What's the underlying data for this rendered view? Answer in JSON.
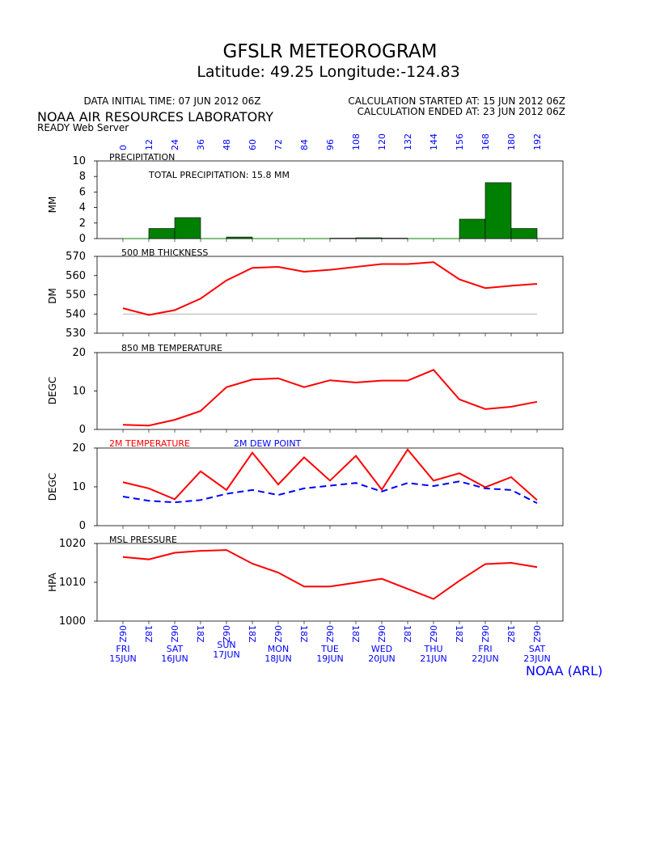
{
  "header": {
    "title": "GFSLR METEOROGRAM",
    "location": "Latitude: 49.25 Longitude:-124.83",
    "data_initial_time": "DATA INITIAL TIME: 07 JUN 2012 06Z",
    "calc_started": "CALCULATION STARTED AT: 15 JUN 2012 06Z",
    "calc_ended": "CALCULATION ENDED AT: 23 JUN 2012 06Z",
    "org": "NOAA AIR RESOURCES LABORATORY",
    "server": "READY Web Server",
    "credit": "NOAA (ARL)"
  },
  "colors": {
    "bar": "#008000",
    "line": "#ff0000",
    "dewpoint": "#0000ff",
    "axis_text": "#0000ff"
  },
  "forecast_hours": [
    "0",
    "12",
    "24",
    "36",
    "48",
    "60",
    "72",
    "84",
    "96",
    "108",
    "120",
    "132",
    "144",
    "156",
    "168",
    "180",
    "192"
  ],
  "time_labels": [
    "06Z",
    "18Z",
    "06Z",
    "18Z",
    "06Z",
    "18Z",
    "06Z",
    "18Z",
    "06Z",
    "18Z",
    "06Z",
    "18Z",
    "06Z",
    "18Z",
    "06Z",
    "18Z",
    "06Z"
  ],
  "days": [
    {
      "day": "FRI",
      "date": "15JUN"
    },
    {
      "day": "SAT",
      "date": "16JUN"
    },
    {
      "day": "SUN",
      "date": "17JUN"
    },
    {
      "day": "MON",
      "date": "18JUN"
    },
    {
      "day": "TUE",
      "date": "19JUN"
    },
    {
      "day": "WED",
      "date": "20JUN"
    },
    {
      "day": "THU",
      "date": "21JUN"
    },
    {
      "day": "FRI",
      "date": "22JUN"
    },
    {
      "day": "SAT",
      "date": "23JUN"
    }
  ],
  "chart_data": [
    {
      "type": "bar",
      "title": "PRECIPITATION",
      "annotation": "TOTAL PRECIPITATION:  15.8 MM",
      "ylabel": "MM",
      "ylim": [
        0,
        10
      ],
      "yticks": [
        0,
        2,
        4,
        6,
        8,
        10
      ],
      "x": [
        0,
        12,
        24,
        36,
        48,
        60,
        72,
        84,
        96,
        108,
        120,
        132,
        144,
        156,
        168,
        180
      ],
      "values": [
        0,
        1.3,
        2.7,
        0,
        0.2,
        0,
        0,
        0,
        0.05,
        0.1,
        0.05,
        0,
        0,
        2.5,
        7.2,
        1.3
      ]
    },
    {
      "type": "line",
      "title": "500 MB  THICKNESS",
      "ylabel": "DM",
      "ylim": [
        530,
        570
      ],
      "yticks": [
        530,
        540,
        550,
        560,
        570
      ],
      "x": [
        0,
        12,
        24,
        36,
        48,
        60,
        72,
        84,
        96,
        108,
        120,
        132,
        144,
        156,
        168,
        180,
        192
      ],
      "series": [
        {
          "values": [
            543,
            539.5,
            542,
            548,
            557.5,
            564,
            564.5,
            562,
            563,
            564.5,
            566,
            566,
            567,
            558,
            553.5,
            554.7,
            555.7
          ]
        }
      ]
    },
    {
      "type": "line",
      "title": "850 MB  TEMPERATURE",
      "ylabel": "DEGC",
      "ylim": [
        0,
        20
      ],
      "yticks": [
        0,
        10,
        20
      ],
      "x": [
        0,
        12,
        24,
        36,
        48,
        60,
        72,
        84,
        96,
        108,
        120,
        132,
        144,
        156,
        168,
        180,
        192
      ],
      "series": [
        {
          "values": [
            1.2,
            1.0,
            2.5,
            4.8,
            11,
            13,
            13.3,
            11,
            12.8,
            12.2,
            12.7,
            12.7,
            15.5,
            7.8,
            5.3,
            5.9,
            7.2
          ]
        }
      ]
    },
    {
      "type": "line",
      "title": "",
      "ylabel": "DEGC",
      "ylim": [
        0,
        20
      ],
      "yticks": [
        0,
        10,
        20
      ],
      "x": [
        0,
        12,
        24,
        36,
        48,
        60,
        72,
        84,
        96,
        108,
        120,
        132,
        144,
        156,
        168,
        180,
        192
      ],
      "series": [
        {
          "name": "2M TEMPERATURE",
          "values": [
            11.2,
            9.6,
            6.8,
            14,
            9.2,
            18.8,
            10.6,
            17.6,
            11.6,
            18,
            9.3,
            19.6,
            11.6,
            13.5,
            9.9,
            12.5,
            6.6
          ]
        },
        {
          "name": "2M   DEW POINT",
          "values": [
            7.5,
            6.4,
            6.0,
            6.6,
            8.2,
            9.2,
            7.9,
            9.6,
            10.3,
            11,
            8.8,
            11,
            10.2,
            11.4,
            9.6,
            9.2,
            5.8
          ]
        }
      ]
    },
    {
      "type": "line",
      "title": "MSL PRESSURE",
      "ylabel": "HPA",
      "ylim": [
        1000,
        1020
      ],
      "yticks": [
        1000,
        1010,
        1020
      ],
      "x": [
        0,
        12,
        24,
        36,
        48,
        60,
        72,
        84,
        96,
        108,
        120,
        132,
        144,
        156,
        168,
        180,
        192
      ],
      "series": [
        {
          "values": [
            1016.5,
            1015.9,
            1017.6,
            1018.1,
            1018.3,
            1014.8,
            1012.5,
            1008.9,
            1008.9,
            1009.9,
            1010.9,
            1008.3,
            1005.7,
            1010.4,
            1014.7,
            1015.0,
            1013.9
          ]
        }
      ]
    }
  ]
}
